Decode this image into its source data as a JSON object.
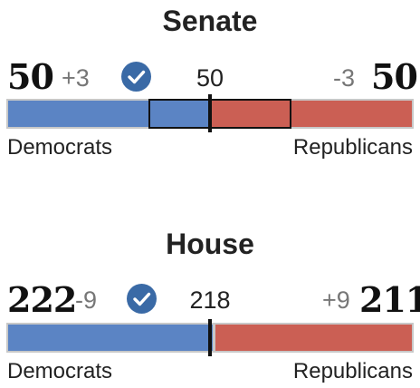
{
  "senate": {
    "title": "Senate",
    "dem_seats": "50",
    "dem_change": "+3",
    "majority_threshold": "50",
    "rep_change": "-3",
    "rep_seats": "50",
    "dem_label": "Democrats",
    "rep_label": "Republicans",
    "winner": "Democrats",
    "colors": {
      "dem": "#5b84c4",
      "rep": "#cb5f54",
      "check": "#3a6aa6"
    }
  },
  "house": {
    "title": "House",
    "dem_seats": "222",
    "dem_change": "-9",
    "majority_threshold": "218",
    "rep_change": "+9",
    "rep_seats": "211",
    "dem_label": "Democrats",
    "rep_label": "Republicans",
    "winner": "Democrats",
    "colors": {
      "dem": "#5b84c4",
      "rep": "#cb5f54",
      "check": "#3a6aa6"
    }
  }
}
